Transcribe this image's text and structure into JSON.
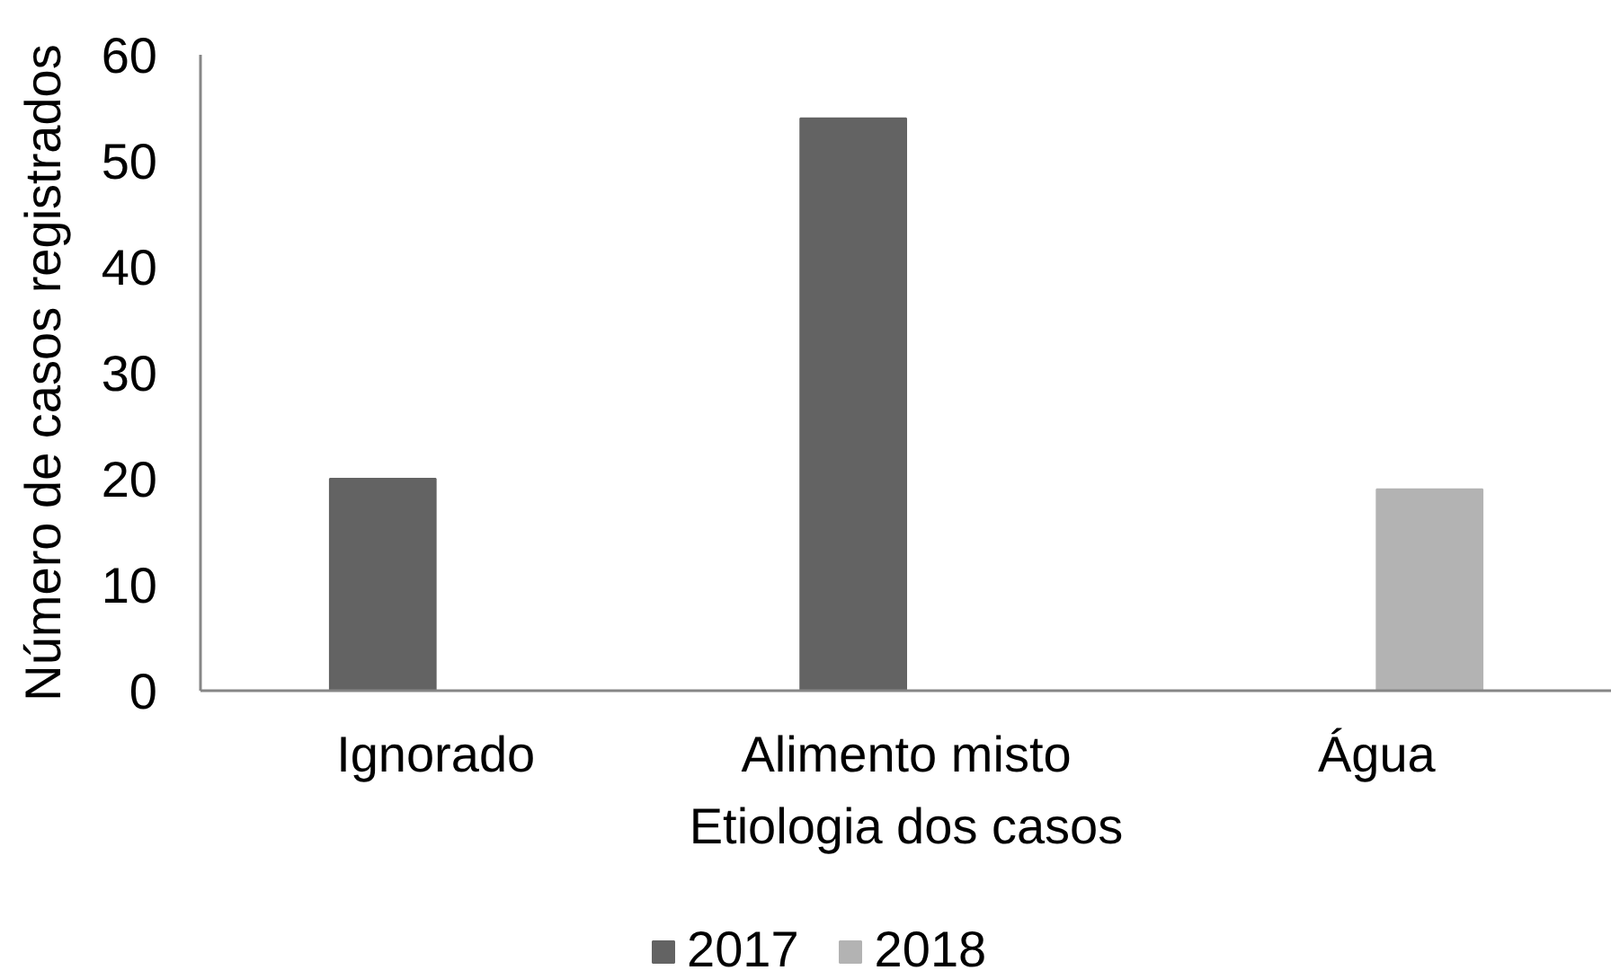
{
  "chart_data": {
    "type": "bar",
    "xlabel": "Etiologia dos casos",
    "ylabel": "Número de casos registrados",
    "categories": [
      "Ignorado",
      "Alimento misto",
      "Água"
    ],
    "series": [
      {
        "name": "2017",
        "color": "#636363",
        "values": [
          20,
          54,
          null
        ]
      },
      {
        "name": "2018",
        "color": "#b3b3b3",
        "values": [
          null,
          null,
          19
        ]
      }
    ],
    "ylim": [
      0,
      60
    ],
    "yticks": [
      0,
      10,
      20,
      30,
      40,
      50,
      60
    ],
    "grid": false,
    "legend": "bottom"
  }
}
